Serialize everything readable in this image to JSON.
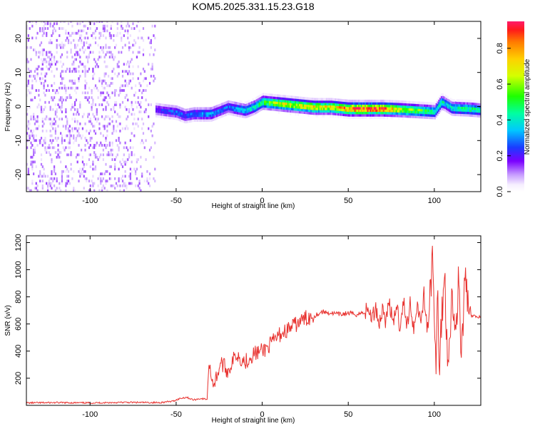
{
  "title": "KOM5.2025.331.15.23.G18",
  "chart_data": [
    {
      "type": "heatmap",
      "xlabel": "Height of straight line (km)",
      "ylabel": "Frequency (Hz)",
      "xlim": [
        -137,
        127
      ],
      "ylim": [
        -25,
        25
      ],
      "xticks": [
        -100,
        -50,
        0,
        50,
        100
      ],
      "yticks": [
        -20,
        -10,
        0,
        10,
        20
      ],
      "colorbar": {
        "label": "Normalized spectral amplitude",
        "range": [
          0,
          0.95
        ],
        "ticks": [
          0.0,
          0.2,
          0.4,
          0.6,
          0.8
        ]
      },
      "ridge": {
        "x": [
          -137,
          -110,
          -90,
          -75,
          -65,
          -58,
          -50,
          -45,
          -40,
          -30,
          -25,
          -20,
          -10,
          -5,
          0,
          10,
          20,
          30,
          40,
          50,
          60,
          70,
          80,
          90,
          100,
          104,
          106,
          110,
          120,
          127
        ],
        "frequency": [
          0,
          0,
          0,
          0,
          -1,
          -1.5,
          -2,
          -3,
          -2.5,
          -2.5,
          -1.5,
          -0.5,
          -1.5,
          -0.5,
          1,
          0.5,
          0,
          -0.5,
          -0.5,
          -1,
          -1,
          -1,
          -1.2,
          -1.5,
          -1.8,
          1,
          0.5,
          -0.8,
          -1,
          -1.3
        ],
        "amplitude": [
          0.12,
          0.12,
          0.12,
          0.12,
          0.2,
          0.25,
          0.3,
          0.28,
          0.3,
          0.35,
          0.3,
          0.3,
          0.4,
          0.45,
          0.55,
          0.7,
          0.72,
          0.75,
          0.75,
          0.9,
          0.95,
          0.92,
          0.7,
          0.6,
          0.45,
          0.5,
          0.4,
          0.45,
          0.5,
          0.45
        ]
      }
    },
    {
      "type": "line",
      "xlabel": "Height of straight line (km)",
      "ylabel": "SNR (v/v)",
      "xlim": [
        -137,
        127
      ],
      "ylim": [
        0,
        1250
      ],
      "xticks": [
        -100,
        -50,
        0,
        50,
        100
      ],
      "yticks": [
        200,
        400,
        600,
        800,
        1000,
        1200
      ],
      "color": "#e8322f",
      "series": [
        {
          "x": [
            -137,
            -120,
            -100,
            -80,
            -60,
            -52,
            -48,
            -44,
            -40,
            -36,
            -32,
            -31,
            -28,
            -24,
            -20,
            -15,
            -10,
            -5,
            0,
            5,
            10,
            15,
            20,
            25,
            30,
            35,
            40,
            45,
            50,
            55,
            60,
            62,
            64,
            66,
            68,
            70,
            72,
            74,
            76,
            78,
            80,
            82,
            84,
            86,
            88,
            90,
            92,
            94,
            96,
            98,
            99,
            100,
            101,
            102,
            103,
            104,
            106,
            108,
            110,
            112,
            114,
            116,
            118,
            120,
            122,
            125,
            127
          ],
          "values": [
            18,
            20,
            18,
            22,
            20,
            30,
            50,
            60,
            40,
            50,
            45,
            300,
            150,
            320,
            250,
            380,
            320,
            380,
            400,
            450,
            520,
            560,
            600,
            640,
            660,
            690,
            680,
            670,
            680,
            670,
            690,
            700,
            640,
            730,
            600,
            720,
            620,
            780,
            560,
            760,
            580,
            790,
            560,
            770,
            560,
            760,
            620,
            810,
            550,
            850,
            1200,
            600,
            200,
            960,
            150,
            620,
            950,
            300,
            820,
            500,
            900,
            380,
            980,
            650,
            660,
            650,
            660
          ]
        }
      ]
    }
  ]
}
